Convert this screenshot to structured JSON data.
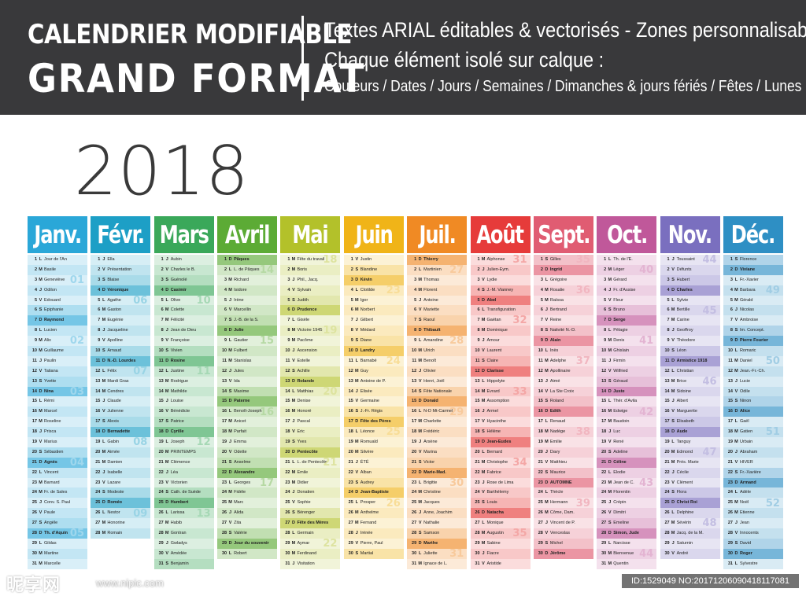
{
  "banner": {
    "title_line1": "CALENDRIER MODIFIABLE",
    "title_line2": "GRAND FORMAT",
    "desc_line1": "Textes ARIAL éditables & vectorisés  -  Zones personnalisables",
    "desc_line2": "Chaque élément isolé sur calque :",
    "desc_line3": "Couleurs / Dates / Jours / Semaines / Dimanches & jours fériés / Fêtes / Lunes"
  },
  "year": "2018",
  "watermark": {
    "logo": "昵享网",
    "url": "www.nipic.com",
    "id": "ID:1529049 NO:20171206090418117081"
  },
  "months": [
    {
      "name": "Janv.",
      "color": "#2aa7d8",
      "start": 1,
      "days": 31,
      "fetes": [
        "Jour de l'An",
        "Basile",
        "Geneviève",
        "Odilon",
        "Edouard",
        "Epiphanie",
        "Raymond",
        "Lucien",
        "Alix",
        "Guillaume",
        "Paulin",
        "Tatiana",
        "Yvette",
        "Nina",
        "Rémi",
        "Marcel",
        "Roseline",
        "Prisca",
        "Marius",
        "Sébastien",
        "Agnès",
        "Vincent",
        "Barnard",
        "Fr. de Sales",
        "Conv. S. Paul",
        "Paule",
        "Angèle",
        "Th. d'Aquin",
        "Gildas",
        "Martine",
        "Marcelle"
      ],
      "weeks": [
        [
          "01",
          3
        ],
        [
          "02",
          9
        ],
        [
          "03",
          14
        ],
        [
          "04",
          21
        ],
        [
          "05",
          28
        ]
      ]
    },
    {
      "name": "Févr.",
      "color": "#1d9fc6",
      "start": 4,
      "days": 28,
      "fetes": [
        "Ella",
        "Présentation",
        "Blaise",
        "Véronique",
        "Agathe",
        "Gaston",
        "Eugénie",
        "Jacqueline",
        "Apolline",
        "Arnaud",
        "N.-D. Lourdes",
        "Félix",
        "Mardi Gras",
        "Cendres",
        "Claude",
        "Julienne",
        "Alexis",
        "Bernadette",
        "Gabin",
        "Aimée",
        "Damien",
        "Isabelle",
        "Lazare",
        "Modeste",
        "Roméo",
        "Nestor",
        "Honorine",
        "Romain"
      ],
      "weeks": [
        [
          "06",
          5
        ],
        [
          "07",
          12
        ],
        [
          "08",
          19
        ],
        [
          "09",
          26
        ]
      ]
    },
    {
      "name": "Mars",
      "color": "#3aa85a",
      "start": 4,
      "days": 31,
      "fetes": [
        "Aubin",
        "Charles le B.",
        "Guénolé",
        "Casimir",
        "Olive",
        "Colette",
        "Félicité",
        "Jean de Dieu",
        "Françoise",
        "Vivien",
        "Rosine",
        "Justine",
        "Rodrigue",
        "Mathilde",
        "Louise",
        "Bénédicte",
        "Patrice",
        "Cyrille",
        "Joseph",
        "PRINTEMPS",
        "Clémence",
        "Léa",
        "Victorien",
        "Cath. de Suède",
        "Humbert",
        "Larissa",
        "Habib",
        "Gontran",
        "Gwladys",
        "Amédée",
        "Benjamin"
      ],
      "weeks": [
        [
          "10",
          5
        ],
        [
          "11",
          12
        ],
        [
          "12",
          19
        ],
        [
          "13",
          26
        ]
      ]
    },
    {
      "name": "Avril",
      "color": "#5cab35",
      "start": 7,
      "days": 30,
      "fetes": [
        "Pâques",
        "L. de Pâques",
        "Richard",
        "Isidore",
        "Irène",
        "Marcellin",
        "J.-B. de la S.",
        "Julie",
        "Gautier",
        "Fulbert",
        "Stanislas",
        "Jules",
        "Ida",
        "Maxime",
        "Paterne",
        "Benoît-Joseph",
        "Anicet",
        "Parfait",
        "Emma",
        "Odette",
        "Anselme",
        "Alexandre",
        "Georges",
        "Fidèle",
        "Marc",
        "Alida",
        "Zita",
        "Valérie",
        "Jour du souvenir",
        "Robert"
      ],
      "weeks": [
        [
          "14",
          2
        ],
        [
          "15",
          9
        ],
        [
          "16",
          16
        ],
        [
          "17",
          23
        ]
      ]
    },
    {
      "name": "Mai",
      "color": "#b3c12a",
      "start": 2,
      "days": 31,
      "fetes": [
        "Fête du travail",
        "Boris",
        "Phil., Jacq.",
        "Sylvain",
        "Judith",
        "Prudence",
        "Gisèle",
        "Victoire 1945",
        "Pacôme",
        "Ascension",
        "Estelle",
        "Achille",
        "Rolande",
        "Matthias",
        "Denise",
        "Honoré",
        "Pascal",
        "Eric",
        "Yves",
        "Pentecôte",
        "L. de Pentecôte",
        "Emile",
        "Didier",
        "Donatien",
        "Sophie",
        "Bérenger",
        "Fête des Mères",
        "Germain",
        "Aymar",
        "Ferdinand",
        "Visitation"
      ],
      "weeks": [
        [
          "18",
          1
        ],
        [
          "19",
          8
        ],
        [
          "20",
          14
        ],
        [
          "21",
          21
        ],
        [
          "22",
          29
        ]
      ]
    },
    {
      "name": "Juin",
      "color": "#f0b418",
      "start": 5,
      "days": 30,
      "fetes": [
        "Justin",
        "Blandine",
        "Kévin",
        "Clotilde",
        "Igor",
        "Norbert",
        "Gilbert",
        "Médard",
        "Diane",
        "Landry",
        "Barnabé",
        "Guy",
        "Antoine de P.",
        "Elisée",
        "Germaine",
        "J.-Fr. Régis",
        "Fête des Pères",
        "Léonce",
        "Romuald",
        "Silvère",
        "ÉTÉ",
        "Alban",
        "Audrey",
        "Jean-Baptiste",
        "Prosper",
        "Anthelme",
        "Fernand",
        "Irénée",
        "Pierre, Paul",
        "Martial"
      ],
      "weeks": [
        [
          "23",
          4
        ],
        [
          "24",
          11
        ],
        [
          "25",
          18
        ],
        [
          "26",
          25
        ]
      ]
    },
    {
      "name": "Juil.",
      "color": "#f08a24",
      "start": 7,
      "days": 31,
      "fetes": [
        "Thierry",
        "Martinien",
        "Thomas",
        "Florent",
        "Antoine",
        "Mariette",
        "Raoul",
        "Thibault",
        "Amandine",
        "Ulrich",
        "Benoît",
        "Olivier",
        "Henri, Joël",
        "Fête Nationale",
        "Donald",
        "N-D Mt-Carmel",
        "Charlotte",
        "Frédéric",
        "Arsène",
        "Marina",
        "Victor",
        "Marie-Mad.",
        "Brigitte",
        "Christine",
        "Jacques",
        "Anne, Joachim",
        "Nathalie",
        "Samson",
        "Marthe",
        "Juliette",
        "Ignace de L."
      ],
      "weeks": [
        [
          "27",
          2
        ],
        [
          "28",
          9
        ],
        [
          "29",
          16
        ],
        [
          "30",
          23
        ],
        [
          "31",
          30
        ]
      ]
    },
    {
      "name": "Août",
      "color": "#e63b3a",
      "start": 3,
      "days": 31,
      "fetes": [
        "Alphonse",
        "Julien-Eym.",
        "Lydie",
        "J.-M. Vianney",
        "Abel",
        "Transfiguration",
        "Gaétan",
        "Dominique",
        "Amour",
        "Laurent",
        "Claire",
        "Clarisse",
        "Hippolyte",
        "Evrard",
        "Assomption",
        "Armel",
        "Hyacinthe",
        "Hélène",
        "Jean-Eudes",
        "Bernard",
        "Christophe",
        "Fabrice",
        "Rose de Lima",
        "Barthélemy",
        "Louis",
        "Natacha",
        "Monique",
        "Augustin",
        "Sabine",
        "Fiacre",
        "Aristide"
      ],
      "weeks": [
        [
          "31",
          1
        ],
        [
          "32",
          7
        ],
        [
          "33",
          14
        ],
        [
          "34",
          21
        ],
        [
          "35",
          28
        ]
      ]
    },
    {
      "name": "Sept.",
      "color": "#e05c72",
      "start": 6,
      "days": 30,
      "fetes": [
        "Gilles",
        "Ingrid",
        "Grégoire",
        "Rosalie",
        "Raïssa",
        "Bertrand",
        "Reine",
        "Nativité N.-D.",
        "Alain",
        "Inès",
        "Adelphe",
        "Apollinaire",
        "Aimé",
        "La Ste Croix",
        "Roland",
        "Edith",
        "Renaud",
        "Nadège",
        "Emilie",
        "Davy",
        "Matthieu",
        "Maurice",
        "AUTOMNE",
        "Thècle",
        "Hermann",
        "Côme, Dam.",
        "Vincent de P.",
        "Venceslas",
        "Michel",
        "Jérôme"
      ],
      "weeks": [
        [
          "35",
          1
        ],
        [
          "36",
          4
        ],
        [
          "37",
          11
        ],
        [
          "38",
          18
        ],
        [
          "39",
          25
        ]
      ]
    },
    {
      "name": "Oct.",
      "color": "#c0589a",
      "start": 1,
      "days": 31,
      "fetes": [
        "Th. de l'E.",
        "Léger",
        "Gérard",
        "Fr. d'Assise",
        "Fleur",
        "Bruno",
        "Serge",
        "Pélagie",
        "Denis",
        "Ghislain",
        "Firmin",
        "Wilfried",
        "Géraud",
        "Juste",
        "Thér. d'Avila",
        "Edwige",
        "Baudoin",
        "Luc",
        "René",
        "Adeline",
        "Céline",
        "Elodie",
        "Jean de C.",
        "Florentin",
        "Crépin",
        "Dimitri",
        "Emeline",
        "Simon, Jude",
        "Narcisse",
        "Bienvenue",
        "Quentin"
      ],
      "weeks": [
        [
          "40",
          2
        ],
        [
          "41",
          9
        ],
        [
          "42",
          16
        ],
        [
          "43",
          23
        ],
        [
          "44",
          30
        ]
      ]
    },
    {
      "name": "Nov.",
      "color": "#7a6fbf",
      "start": 4,
      "days": 30,
      "fetes": [
        "Toussaint",
        "Défunts",
        "Hubert",
        "Charles",
        "Sylvie",
        "Bertille",
        "Carine",
        "Geoffroy",
        "Théodore",
        "Léon",
        "Armistice 1918",
        "Christian",
        "Brice",
        "Sidoine",
        "Albert",
        "Marguerite",
        "Elisabeth",
        "Aude",
        "Tanguy",
        "Edmond",
        "Prés. Marie",
        "Cécile",
        "Clément",
        "Flora",
        "Christ Roi",
        "Delphine",
        "Sévérin",
        "Jacq. de la M.",
        "Saturnin",
        "André"
      ],
      "weeks": [
        [
          "44",
          1
        ],
        [
          "45",
          6
        ],
        [
          "46",
          13
        ],
        [
          "47",
          20
        ],
        [
          "48",
          27
        ]
      ]
    },
    {
      "name": "Déc.",
      "color": "#2e8fc4",
      "start": 6,
      "days": 31,
      "fetes": [
        "Florence",
        "Viviane",
        "Fr.-Xavier",
        "Barbara",
        "Gérald",
        "Nicolas",
        "Ambroise",
        "Im. Concept.",
        "Pierre Fourier",
        "Romaric",
        "Daniel",
        "Jean.-Fr.-Ch.",
        "Lucie",
        "Odile",
        "Ninon",
        "Alice",
        "Gaël",
        "Gatien",
        "Urbain",
        "Abraham",
        "HIVER",
        "Fr.-Xavière",
        "Armand",
        "Adèle",
        "Noël",
        "Etienne",
        "Jean",
        "Innocents",
        "David",
        "Roger",
        "Sylvestre"
      ],
      "weeks": [
        [
          "49",
          4
        ],
        [
          "50",
          11
        ],
        [
          "51",
          18
        ],
        [
          "52",
          25
        ]
      ]
    }
  ],
  "day_letters": [
    "L",
    "M",
    "M",
    "J",
    "V",
    "S",
    "D"
  ]
}
